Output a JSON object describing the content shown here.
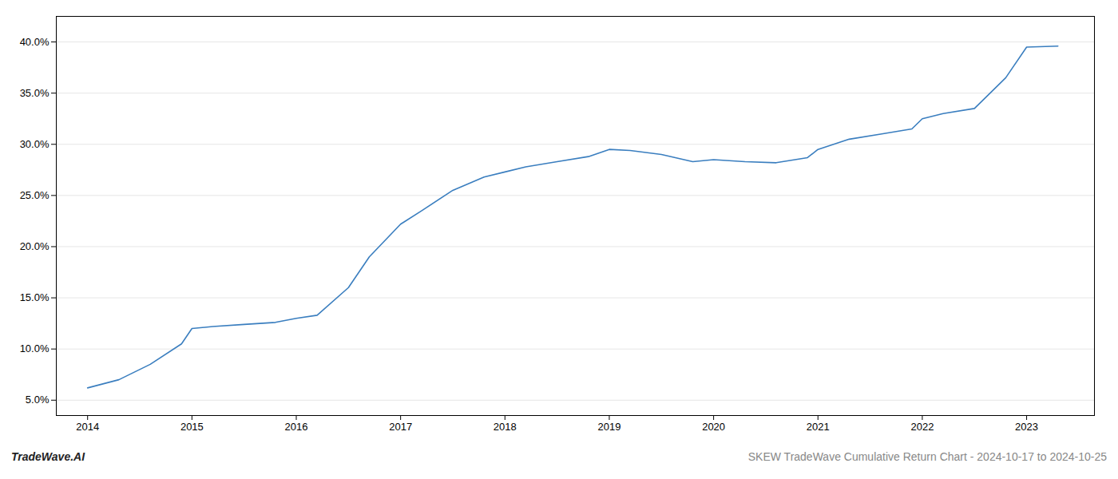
{
  "chart_data": {
    "type": "line",
    "x": [
      2014.0,
      2014.3,
      2014.6,
      2014.9,
      2015.0,
      2015.2,
      2015.5,
      2015.8,
      2016.0,
      2016.2,
      2016.5,
      2016.7,
      2017.0,
      2017.2,
      2017.5,
      2017.8,
      2018.0,
      2018.2,
      2018.5,
      2018.8,
      2019.0,
      2019.2,
      2019.5,
      2019.8,
      2020.0,
      2020.3,
      2020.6,
      2020.9,
      2021.0,
      2021.3,
      2021.6,
      2021.9,
      2022.0,
      2022.2,
      2022.5,
      2022.8,
      2023.0,
      2023.3
    ],
    "values": [
      6.2,
      7.0,
      8.5,
      10.5,
      12.0,
      12.2,
      12.4,
      12.6,
      13.0,
      13.3,
      16.0,
      19.0,
      22.2,
      23.5,
      25.5,
      26.8,
      27.3,
      27.8,
      28.3,
      28.8,
      29.5,
      29.4,
      29.0,
      28.3,
      28.5,
      28.3,
      28.2,
      28.7,
      29.5,
      30.5,
      31.0,
      31.5,
      32.5,
      33.0,
      33.5,
      36.5,
      39.5,
      39.6
    ],
    "color": "#3a7ebf",
    "xlim": [
      2013.7,
      2023.65
    ],
    "xticks": [
      2014,
      2015,
      2016,
      2017,
      2018,
      2019,
      2020,
      2021,
      2022,
      2023
    ],
    "ylim": [
      3.5,
      42.5
    ],
    "yticks": [
      {
        "value": 5.0,
        "label": "5.0%"
      },
      {
        "value": 10.0,
        "label": "10.0%"
      },
      {
        "value": 15.0,
        "label": "15.0%"
      },
      {
        "value": 20.0,
        "label": "20.0%"
      },
      {
        "value": 25.0,
        "label": "25.0%"
      },
      {
        "value": 30.0,
        "label": "30.0%"
      },
      {
        "value": 35.0,
        "label": "35.0%"
      },
      {
        "value": 40.0,
        "label": "40.0%"
      }
    ],
    "grid": "y",
    "annotations": [
      "TradeWave.AI",
      "SKEW TradeWave Cumulative Return Chart - 2024-10-17 to 2024-10-25"
    ]
  }
}
